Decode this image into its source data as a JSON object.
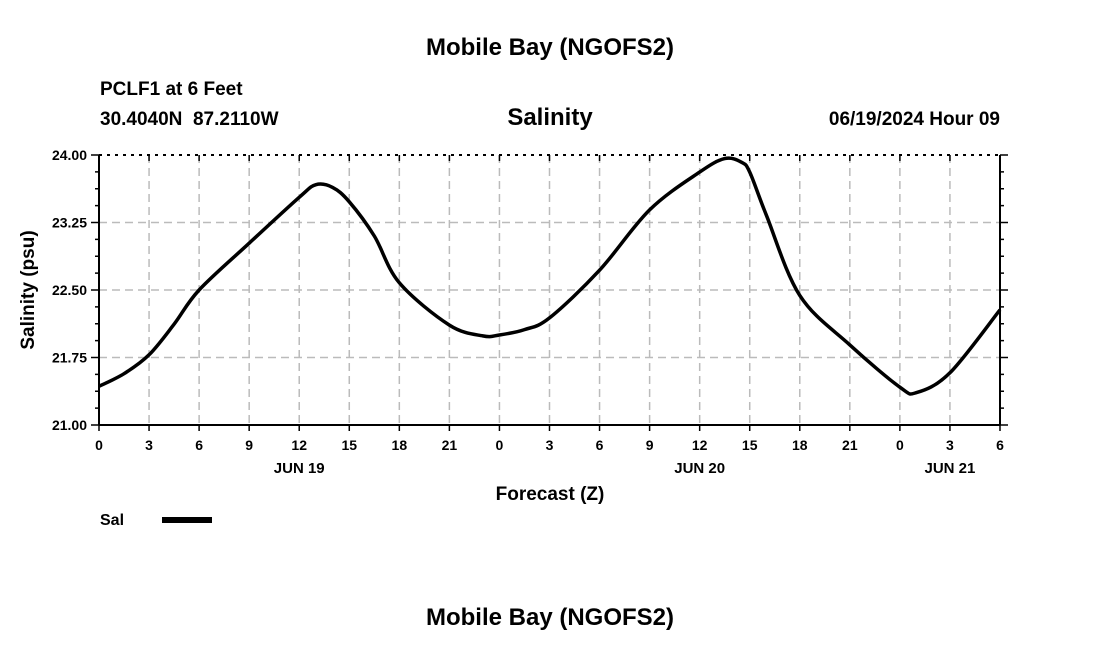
{
  "header": {
    "title": "Mobile Bay (NGOFS2)",
    "station": "PCLF1 at 6 Feet",
    "coords": "30.4040N  87.2110W",
    "subtitle": "Salinity",
    "datetime": "06/19/2024 Hour 09"
  },
  "footer": {
    "title": "Mobile Bay (NGOFS2)"
  },
  "chart_data": {
    "type": "line",
    "title": "Salinity",
    "xlabel": "Forecast (Z)",
    "ylabel": "Salinity (psu)",
    "xlim": [
      0,
      54
    ],
    "ylim": [
      21.0,
      24.0
    ],
    "grid": true,
    "y_ticks": [
      "21.00",
      "21.75",
      "22.50",
      "23.25",
      "24.00"
    ],
    "x_tick_labels": [
      "0",
      "3",
      "6",
      "9",
      "12",
      "15",
      "18",
      "21",
      "0",
      "3",
      "6",
      "9",
      "12",
      "15",
      "18",
      "21",
      "0",
      "3",
      "6"
    ],
    "day_labels": [
      {
        "label": "JUN 19",
        "hour": 12
      },
      {
        "label": "JUN 20",
        "hour": 36
      },
      {
        "label": "JUN 21",
        "hour": 51
      }
    ],
    "legend": {
      "label": "Sal",
      "placement": "bottom-left"
    },
    "series": [
      {
        "name": "Sal",
        "color": "#000000",
        "x": [
          0,
          1.5,
          3,
          4.5,
          6,
          9,
          12,
          13,
          14,
          15,
          16.5,
          18,
          21,
          23,
          24,
          25.5,
          27,
          30,
          33,
          36,
          37.5,
          38.5,
          39,
          40,
          42,
          45,
          48,
          49,
          51,
          54
        ],
        "y": [
          21.43,
          21.57,
          21.78,
          22.12,
          22.5,
          23.02,
          23.53,
          23.67,
          23.64,
          23.48,
          23.1,
          22.58,
          22.11,
          21.99,
          22.0,
          22.06,
          22.19,
          22.72,
          23.39,
          23.81,
          23.96,
          23.92,
          23.81,
          23.33,
          22.44,
          21.89,
          21.42,
          21.36,
          21.58,
          22.28
        ]
      }
    ]
  }
}
